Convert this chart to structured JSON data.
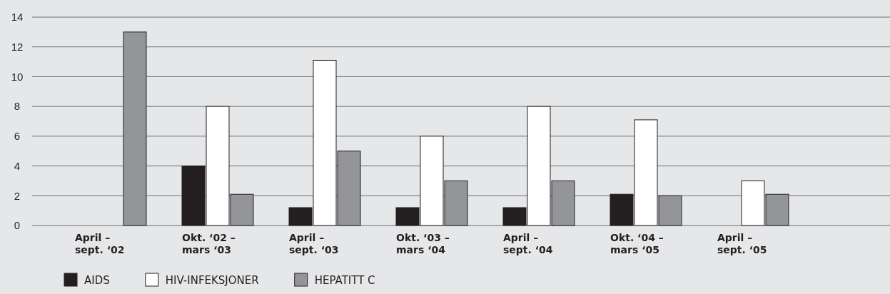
{
  "chart_data": {
    "type": "bar",
    "categories": [
      "April –\nsept. ‘02",
      "Okt. ‘02 –\nmars ‘03",
      "April –\nsept. ‘03",
      "Okt. ‘03 –\nmars ‘04",
      "April –\nsept. ‘04",
      "Okt. ‘04 –\nmars ‘05",
      "April –\nsept. ‘05"
    ],
    "series": [
      {
        "name": "AIDS",
        "color": "#231f20",
        "values": [
          null,
          4,
          1.2,
          1.2,
          1.2,
          2.1,
          null
        ]
      },
      {
        "name": "HIV-INFEKSJONER",
        "color": "#ffffff",
        "values": [
          null,
          8,
          11.1,
          6,
          8,
          7.1,
          3
        ]
      },
      {
        "name": "HEPATITT C",
        "color": "#939598",
        "values": [
          13,
          2.1,
          5,
          3,
          3,
          2,
          2.1
        ]
      }
    ],
    "ylim": [
      0,
      14
    ],
    "yticks": [
      0,
      2,
      4,
      6,
      8,
      10,
      12,
      14
    ],
    "grid": "y",
    "legend": "bottom left"
  }
}
